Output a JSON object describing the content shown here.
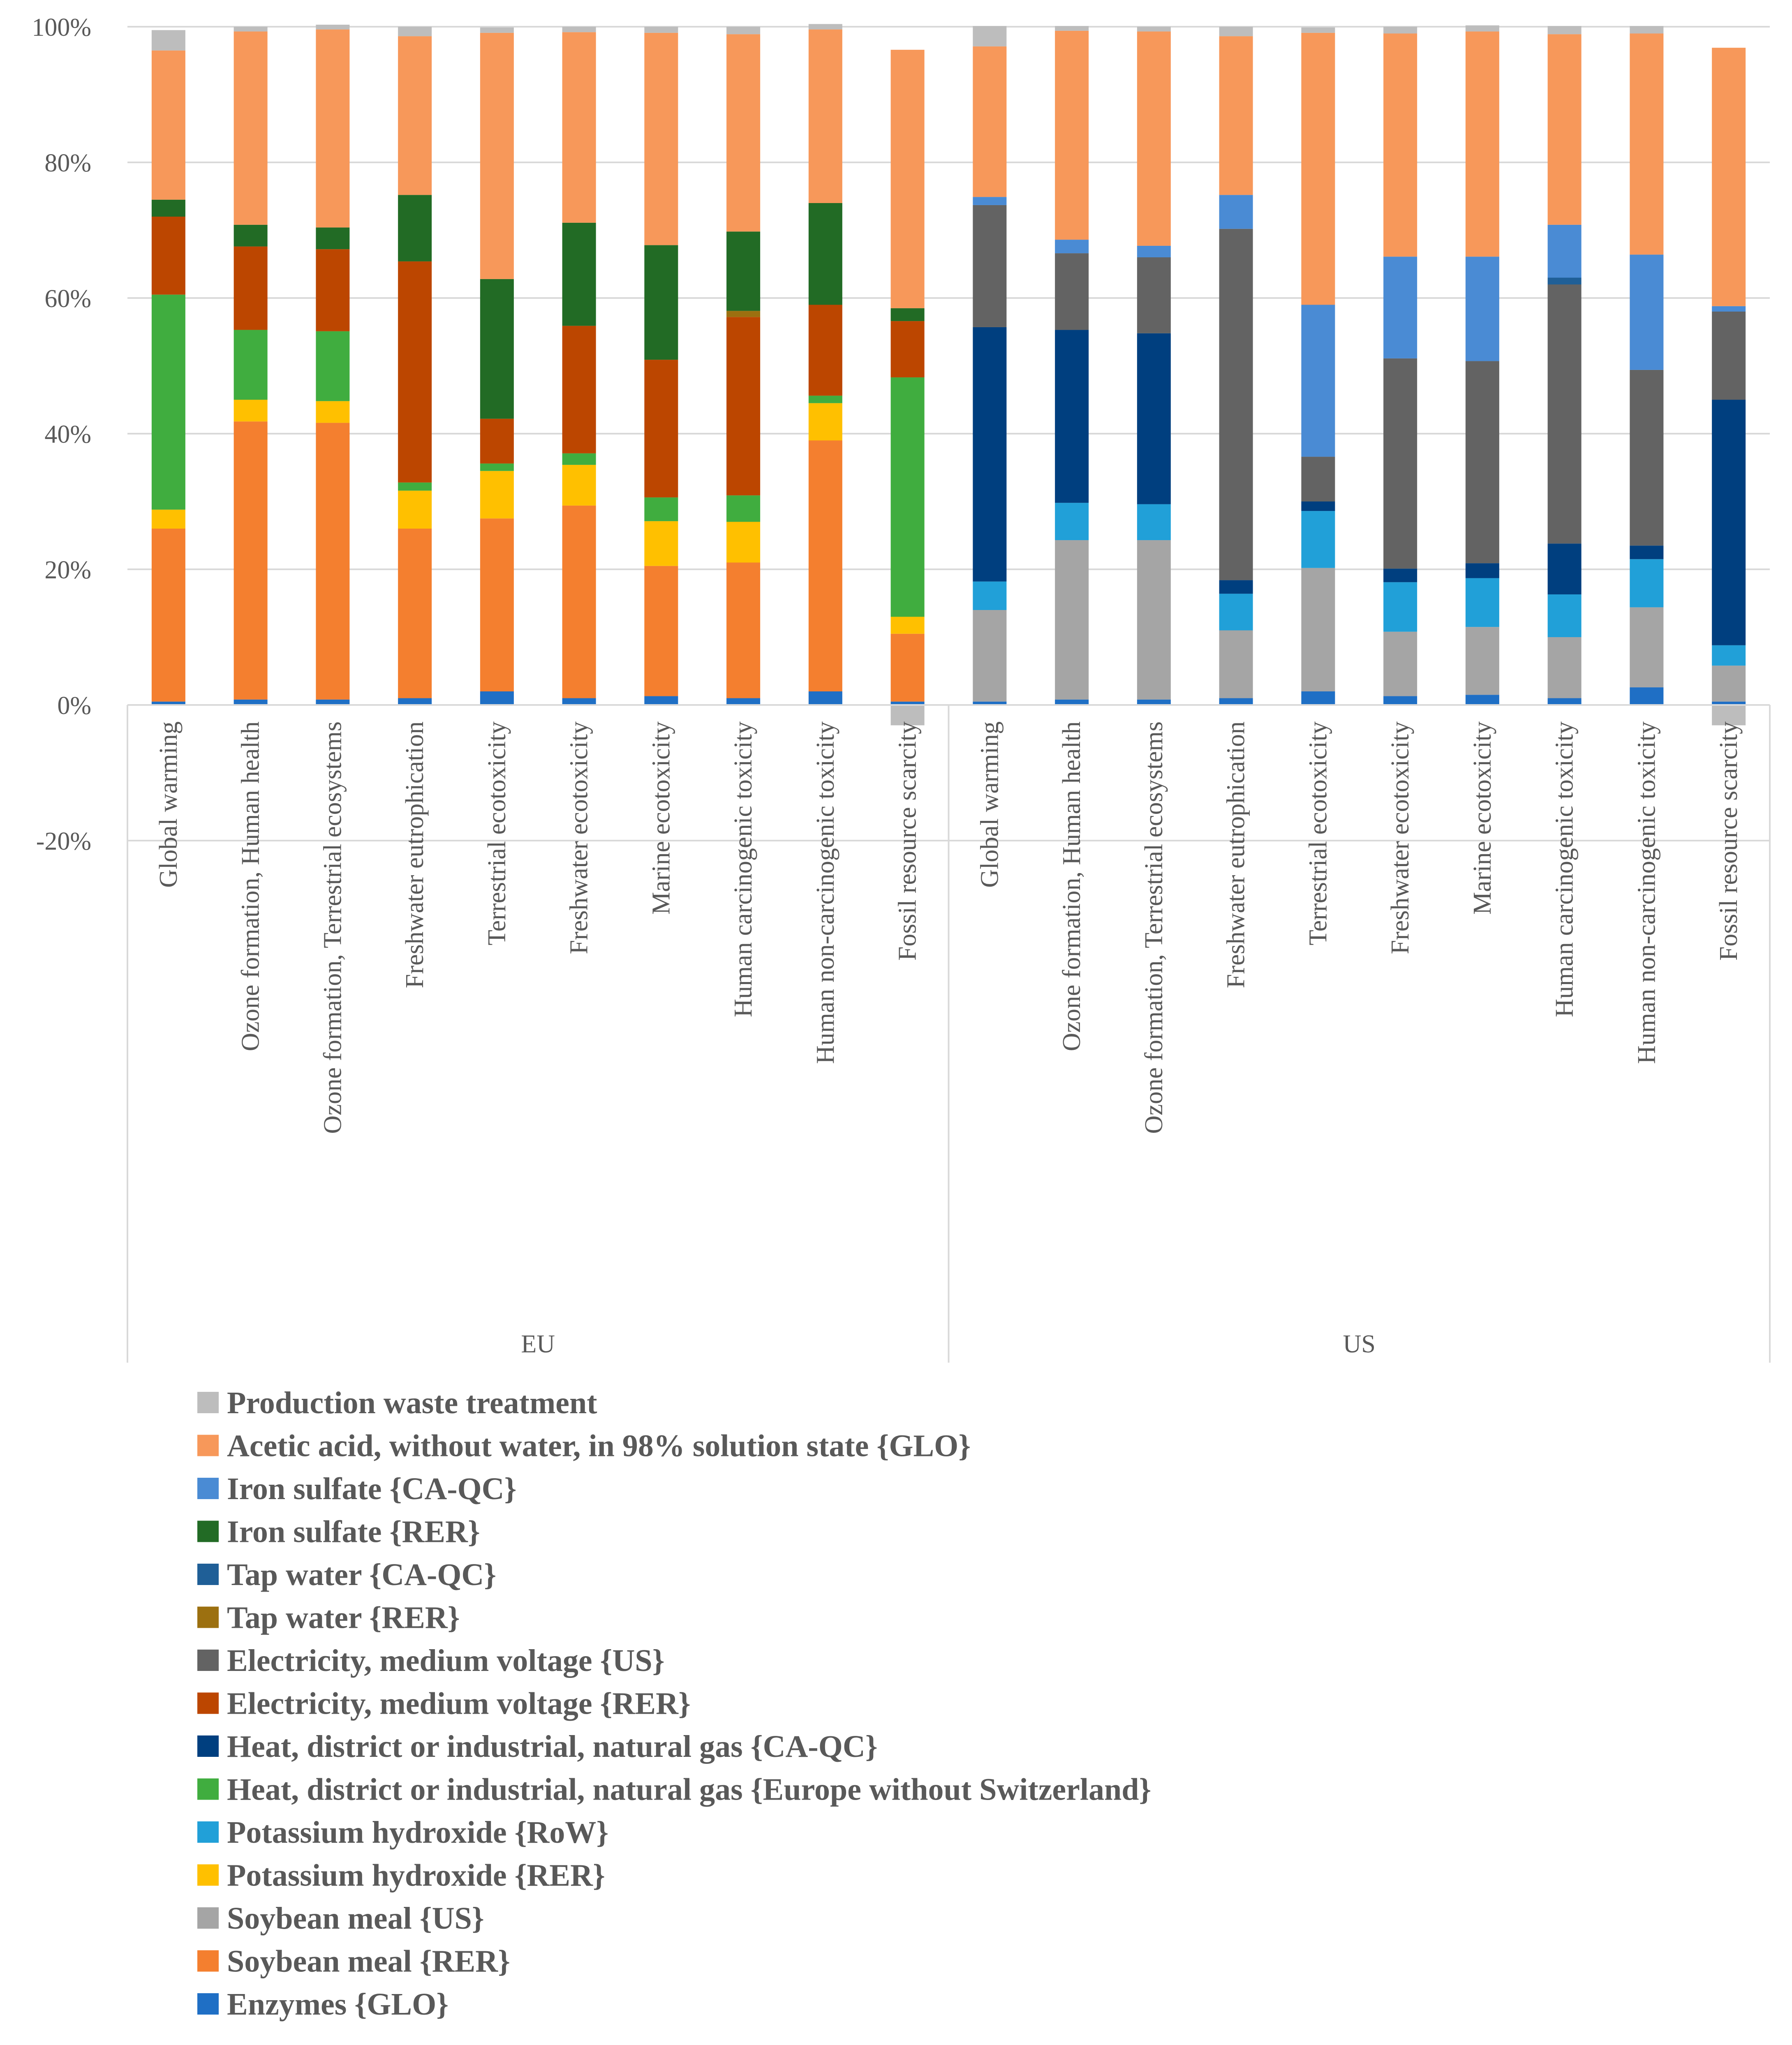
{
  "chart_data": {
    "type": "stacked-bar-100",
    "ylim": [
      -20,
      100
    ],
    "y_ticks": [
      "100%",
      "80%",
      "60%",
      "40%",
      "20%",
      "0%",
      "-20%"
    ],
    "y_tick_values": [
      100,
      80,
      60,
      40,
      20,
      0,
      -20
    ],
    "groups": [
      "EU",
      "US"
    ],
    "categories": [
      "Global warming",
      "Ozone formation, Human health",
      "Ozone formation, Terrestrial ecosystems",
      "Freshwater eutrophication",
      "Terrestrial ecotoxicity",
      "Freshwater ecotoxicity",
      "Marine ecotoxicity",
      "Human carcinogenic toxicity",
      "Human non-carcinogenic toxicity",
      "Fossil resource scarcity"
    ],
    "series": [
      {
        "name": "Enzymes {GLO}",
        "color": "#1f6fc5",
        "EU": [
          0.5,
          0.8,
          0.8,
          1.0,
          2.0,
          1.0,
          1.3,
          1.0,
          2.0,
          0.5
        ],
        "US": [
          0.5,
          0.8,
          0.8,
          1.0,
          2.0,
          1.3,
          1.5,
          1.0,
          2.6,
          0.5
        ]
      },
      {
        "name": "Soybean meal {RER}",
        "color": "#f47f2f",
        "EU": [
          25.5,
          41.0,
          40.8,
          25.0,
          25.5,
          28.4,
          19.2,
          20.0,
          37.0,
          10.0
        ],
        "US": [
          0,
          0,
          0,
          0,
          0,
          0,
          0,
          0,
          0,
          0
        ]
      },
      {
        "name": "Soybean meal {US}",
        "color": "#a5a5a5",
        "EU": [
          0,
          0,
          0,
          0,
          0,
          0,
          0,
          0,
          0,
          0
        ],
        "US": [
          13.5,
          23.5,
          23.5,
          10.0,
          18.2,
          9.5,
          10.0,
          9.0,
          11.8,
          5.3
        ]
      },
      {
        "name": "Potassium hydroxide {RER}",
        "color": "#ffc000",
        "EU": [
          2.8,
          3.2,
          3.2,
          5.6,
          7.0,
          6.0,
          6.6,
          6.0,
          5.5,
          2.5
        ],
        "US": [
          0,
          0,
          0,
          0,
          0,
          0,
          0,
          0,
          0,
          0
        ]
      },
      {
        "name": "Potassium hydroxide {RoW}",
        "color": "#21a0d8",
        "EU": [
          0,
          0,
          0,
          0,
          0,
          0,
          0,
          0,
          0,
          0
        ],
        "US": [
          4.2,
          5.5,
          5.3,
          5.4,
          8.4,
          7.3,
          7.2,
          6.3,
          7.1,
          3.0
        ]
      },
      {
        "name": "Heat, district or industrial, natural gas {Europe without Switzerland}",
        "color": "#40ad3f",
        "EU": [
          31.7,
          10.3,
          10.3,
          1.2,
          1.1,
          1.7,
          3.5,
          3.9,
          1.1,
          35.3
        ],
        "US": [
          0,
          0,
          0,
          0,
          0,
          0,
          0,
          0,
          0,
          0
        ]
      },
      {
        "name": "Heat, district or industrial, natural gas {CA-QC}",
        "color": "#003f7f",
        "EU": [
          0,
          0,
          0,
          0,
          0,
          0,
          0,
          0,
          0,
          0
        ],
        "US": [
          37.5,
          25.5,
          25.2,
          2.0,
          1.4,
          2.0,
          2.2,
          7.5,
          2.0,
          36.2
        ]
      },
      {
        "name": "Electricity, medium voltage {RER}",
        "color": "#bc4600",
        "EU": [
          11.5,
          12.3,
          12.1,
          32.6,
          6.6,
          18.8,
          20.3,
          26.3,
          13.4,
          8.3
        ],
        "US": [
          0,
          0,
          0,
          0,
          0,
          0,
          0,
          0,
          0,
          0
        ]
      },
      {
        "name": "Electricity, medium voltage {US}",
        "color": "#636363",
        "EU": [
          0,
          0,
          0,
          0,
          0,
          0,
          0,
          0,
          0,
          0
        ],
        "US": [
          18.0,
          11.3,
          11.2,
          51.8,
          6.6,
          31.0,
          29.8,
          38.2,
          25.9,
          13.0
        ]
      },
      {
        "name": "Tap water {RER}",
        "color": "#9c7010",
        "EU": [
          0,
          0,
          0,
          0,
          0,
          0,
          0,
          0.9,
          0,
          0
        ],
        "US": [
          0,
          0,
          0,
          0,
          0,
          0,
          0,
          0,
          0,
          0
        ]
      },
      {
        "name": "Tap water {CA-QC}",
        "color": "#1f5f97",
        "EU": [
          0,
          0,
          0,
          0,
          0,
          0,
          0,
          0,
          0,
          0
        ],
        "US": [
          0,
          0,
          0,
          0,
          0,
          0,
          0,
          1.0,
          0,
          0
        ]
      },
      {
        "name": "Iron sulfate {RER}",
        "color": "#226b25",
        "EU": [
          2.5,
          3.2,
          3.2,
          9.8,
          20.6,
          15.2,
          16.9,
          11.7,
          15.0,
          1.9
        ],
        "US": [
          0,
          0,
          0,
          0,
          0,
          0,
          0,
          0,
          0,
          0
        ]
      },
      {
        "name": "Iron sulfate {CA-QC}",
        "color": "#4a8bd4",
        "EU": [
          0,
          0,
          0,
          0,
          0,
          0,
          0,
          0,
          0,
          0
        ],
        "US": [
          1.2,
          2.0,
          1.7,
          5.0,
          22.4,
          15.0,
          15.4,
          7.8,
          17.0,
          0.8
        ]
      },
      {
        "name": "Acetic acid, without water, in 98% solution state {GLO}",
        "color": "#f7985a",
        "EU": [
          22.0,
          28.5,
          29.2,
          23.4,
          36.3,
          28.1,
          31.3,
          29.1,
          25.6,
          38.1
        ],
        "US": [
          22.2,
          30.8,
          31.6,
          23.4,
          40.1,
          32.9,
          33.2,
          28.1,
          32.6,
          38.1
        ]
      },
      {
        "name": "Production waste treatment",
        "color": "#bdbdbd",
        "EU": [
          3.0,
          0.7,
          0.7,
          1.4,
          0.8,
          0.8,
          0.9,
          1.1,
          0.8,
          -3.0
        ],
        "US": [
          3.0,
          0.7,
          0.7,
          1.4,
          0.8,
          1.0,
          0.9,
          1.2,
          1.1,
          -3.0
        ]
      }
    ]
  },
  "legend_order": [
    "Production waste treatment",
    "Acetic acid, without water, in 98% solution state {GLO}",
    "Iron sulfate {CA-QC}",
    "Iron sulfate {RER}",
    "Tap water {CA-QC}",
    "Tap water {RER}",
    "Electricity, medium voltage {US}",
    "Electricity, medium voltage {RER}",
    "Heat, district or industrial, natural gas {CA-QC}",
    "Heat, district or industrial, natural gas {Europe without Switzerland}",
    "Potassium hydroxide {RoW}",
    "Potassium hydroxide {RER}",
    "Soybean meal {US}",
    "Soybean meal {RER}",
    "Enzymes {GLO}"
  ]
}
